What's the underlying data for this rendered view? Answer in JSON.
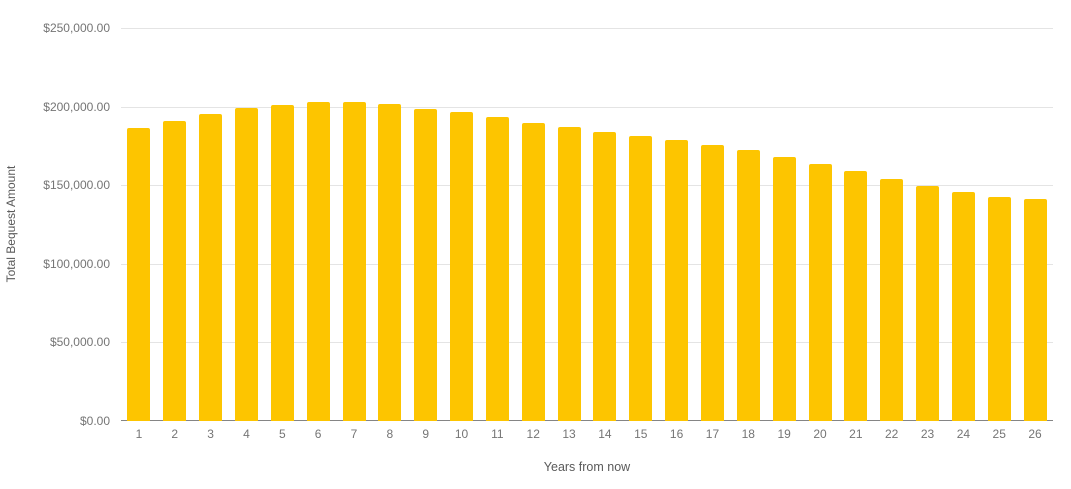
{
  "chart_data": {
    "type": "bar",
    "title": "",
    "xlabel": "Years from now",
    "ylabel": "Total Bequest Amount",
    "categories": [
      "1",
      "2",
      "3",
      "4",
      "5",
      "6",
      "7",
      "8",
      "9",
      "10",
      "11",
      "12",
      "13",
      "14",
      "15",
      "16",
      "17",
      "18",
      "19",
      "20",
      "21",
      "22",
      "23",
      "24",
      "25",
      "26"
    ],
    "values": [
      186100,
      190800,
      195400,
      199300,
      201200,
      202800,
      202800,
      201900,
      198800,
      196400,
      193100,
      189700,
      187100,
      183800,
      181100,
      178600,
      175700,
      172500,
      168000,
      163600,
      158900,
      154100,
      149700,
      145900,
      142800,
      141300
    ],
    "ylim": [
      0,
      250000
    ],
    "yticks": [
      {
        "value": 0,
        "label": "$0.00"
      },
      {
        "value": 50000,
        "label": "$50,000.00"
      },
      {
        "value": 100000,
        "label": "$100,000.00"
      },
      {
        "value": 150000,
        "label": "$150,000.00"
      },
      {
        "value": 200000,
        "label": "$200,000.00"
      },
      {
        "value": 250000,
        "label": "$250,000.00"
      }
    ],
    "grid": true,
    "legend": "none",
    "bar_color": "#FDC500"
  },
  "colors": {
    "background": "#FFFFFF",
    "bar": "#FDC500",
    "gridline": "#E4E4E4",
    "baseline": "#858585",
    "tick_label": "#757575",
    "axis_title": "#5A5A5A"
  }
}
